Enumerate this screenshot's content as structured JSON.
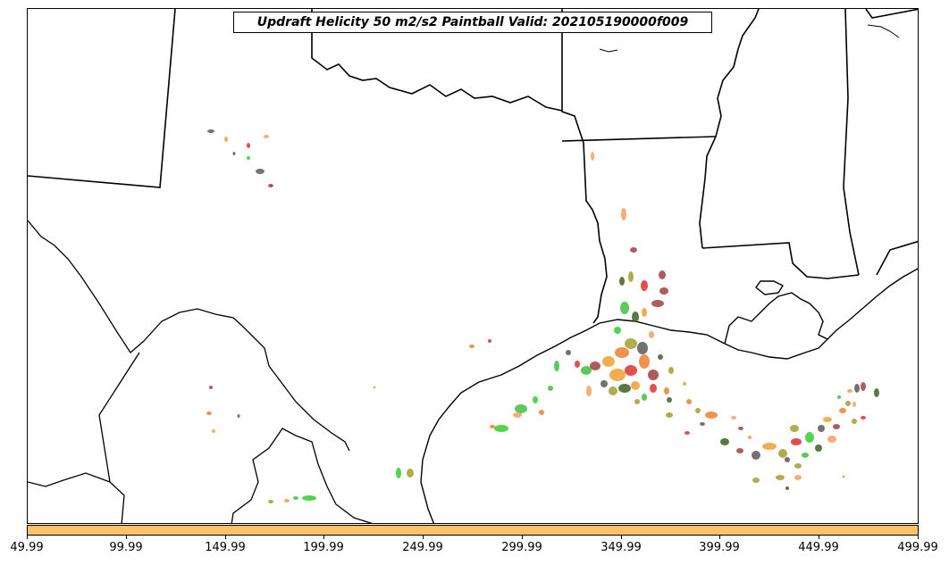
{
  "title": "Updraft Helicity 50 m2/s2 Paintball Valid: 202105190000f009",
  "colors": {
    "colorbar": "#ffc266",
    "border": "#000000",
    "members": [
      "#5a5a5a",
      "#e03030",
      "#f0a030",
      "#30d030",
      "#a04040",
      "#a0a030",
      "#f07f30",
      "#406020",
      "#f5a060",
      "#40c040"
    ]
  },
  "colorbar": {
    "ticks": [
      "49.99",
      "99.99",
      "149.99",
      "199.99",
      "249.99",
      "299.99",
      "349.99",
      "399.99",
      "449.99",
      "499.99"
    ]
  }
}
